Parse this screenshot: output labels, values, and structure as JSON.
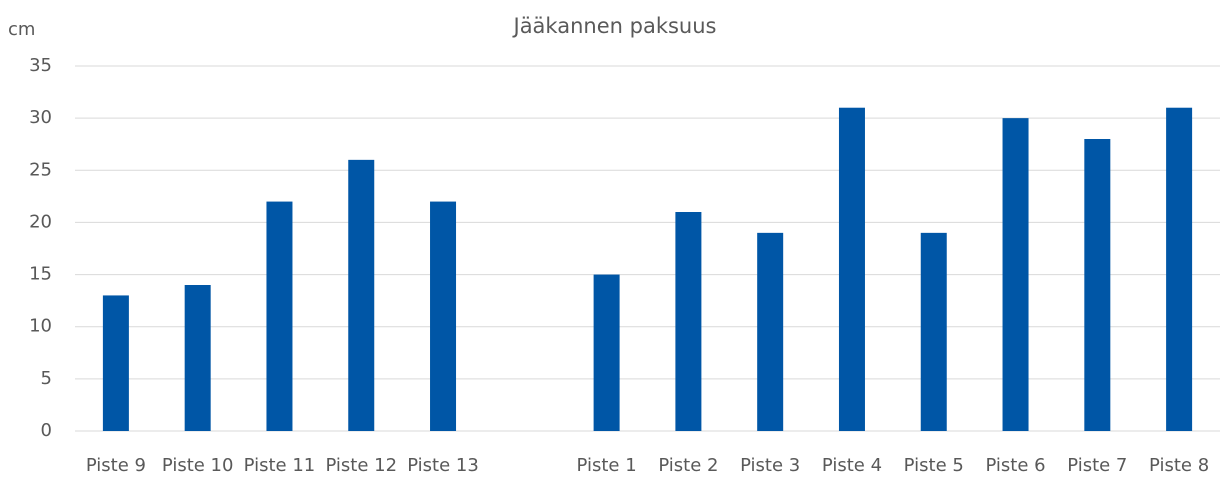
{
  "chart_data": {
    "type": "bar",
    "title": "Jääkannen paksuus",
    "y_label": "cm",
    "categories": [
      "Piste 9",
      "Piste 10",
      "Piste 11",
      "Piste 12",
      "Piste 13",
      null,
      "Piste 1",
      "Piste 2",
      "Piste 3",
      "Piste 4",
      "Piste 5",
      "Piste 6",
      "Piste 7",
      "Piste 8"
    ],
    "values": [
      13,
      14,
      22,
      26,
      22,
      null,
      15,
      21,
      19,
      31,
      19,
      30,
      28,
      31
    ],
    "color": "#0056a6",
    "ylim": [
      0,
      35
    ],
    "yticks": [
      0,
      5,
      10,
      15,
      20,
      25,
      30,
      35
    ],
    "grid": true
  }
}
